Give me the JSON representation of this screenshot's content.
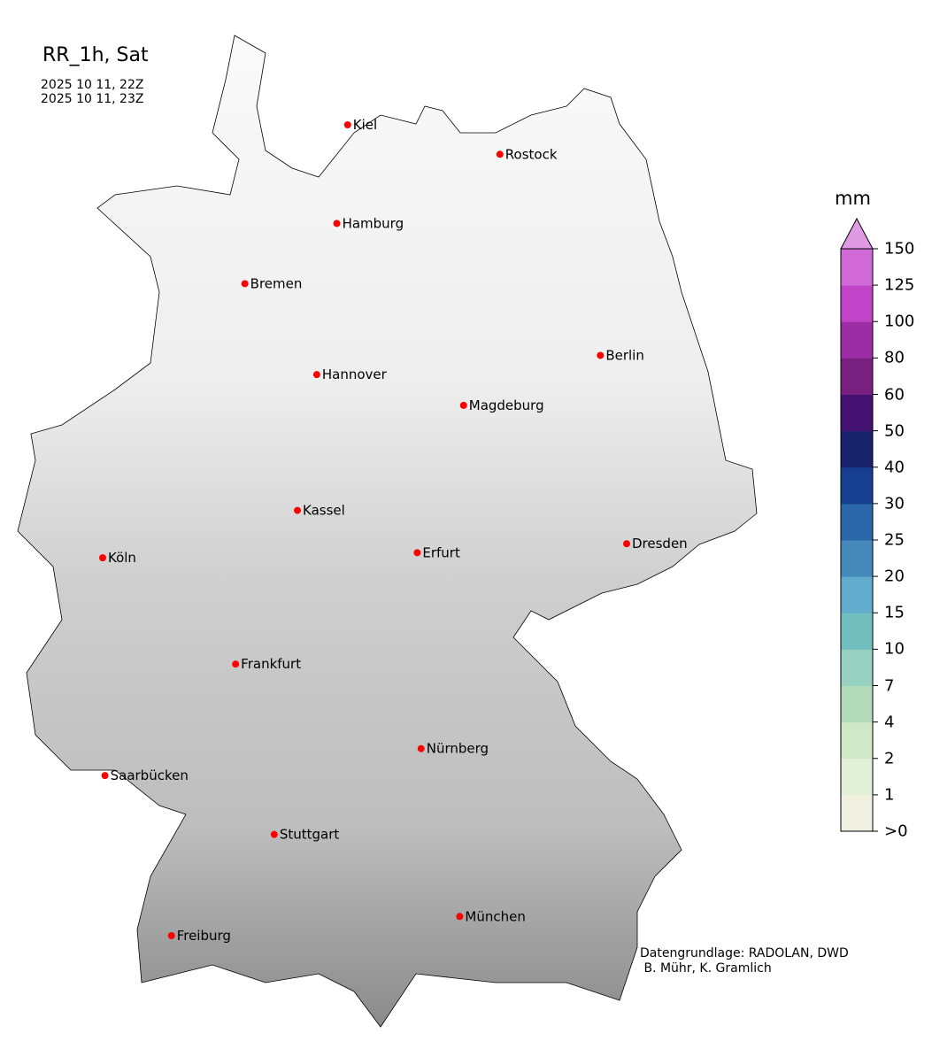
{
  "title": "RR_1h, Sat",
  "time_start": "2025 10 11, 22Z",
  "time_end": "2025 10 11, 23Z",
  "credit": "Datengrundlage: RADOLAN, DWD\n B. Mühr, K. Gramlich",
  "colorbar": {
    "unit": "mm",
    "extend": "max",
    "ticks": [
      ">0",
      "1",
      "2",
      "4",
      "7",
      "10",
      "15",
      "20",
      "25",
      "30",
      "40",
      "50",
      "60",
      "80",
      "100",
      "125",
      "150"
    ],
    "colors": [
      "#f0f0e0",
      "#e3f0d8",
      "#d1e8c6",
      "#b2dbb9",
      "#97d2c0",
      "#73bfc0",
      "#62acce",
      "#4689bb",
      "#2b66a8",
      "#173f8f",
      "#18226a",
      "#441270",
      "#782080",
      "#9c2ca4",
      "#c144c8",
      "#d16ad6"
    ],
    "over_color": "#e09ae4"
  },
  "cities": [
    {
      "name": "Kiel",
      "lon": 10.13,
      "lat": 54.32
    },
    {
      "name": "Rostock",
      "lon": 12.1,
      "lat": 54.09
    },
    {
      "name": "Hamburg",
      "lon": 9.99,
      "lat": 53.55
    },
    {
      "name": "Bremen",
      "lon": 8.8,
      "lat": 53.08
    },
    {
      "name": "Berlin",
      "lon": 13.4,
      "lat": 52.52
    },
    {
      "name": "Hannover",
      "lon": 9.73,
      "lat": 52.37
    },
    {
      "name": "Magdeburg",
      "lon": 11.63,
      "lat": 52.13
    },
    {
      "name": "Kassel",
      "lon": 9.48,
      "lat": 51.31
    },
    {
      "name": "Köln",
      "lon": 6.96,
      "lat": 50.94
    },
    {
      "name": "Erfurt",
      "lon": 11.03,
      "lat": 50.98
    },
    {
      "name": "Dresden",
      "lon": 13.74,
      "lat": 51.05
    },
    {
      "name": "Frankfurt",
      "lon": 8.68,
      "lat": 50.11
    },
    {
      "name": "Nürnberg",
      "lon": 11.08,
      "lat": 49.45
    },
    {
      "name": "Saarbücken",
      "lon": 6.99,
      "lat": 49.24
    },
    {
      "name": "Stuttgart",
      "lon": 9.18,
      "lat": 48.78
    },
    {
      "name": "München",
      "lon": 11.58,
      "lat": 48.14
    },
    {
      "name": "Freiburg",
      "lon": 7.85,
      "lat": 47.99
    }
  ]
}
